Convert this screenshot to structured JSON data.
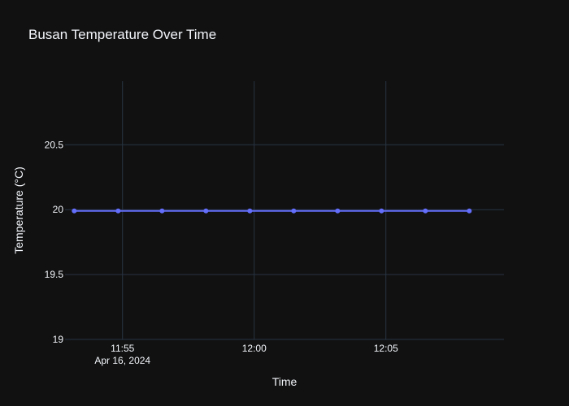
{
  "chart_data": {
    "type": "line",
    "title": "Busan Temperature Over Time",
    "xlabel": "Time",
    "ylabel": "Temperature (°C)",
    "x_date": "Apr 16, 2024",
    "x": [
      "11:53:10",
      "11:54:50",
      "11:56:30",
      "11:58:10",
      "11:59:50",
      "12:01:30",
      "12:03:10",
      "12:04:50",
      "12:06:30",
      "12:08:10"
    ],
    "series": [
      {
        "values": [
          19.99,
          19.99,
          19.99,
          19.99,
          19.99,
          19.99,
          19.99,
          19.99,
          19.99,
          19.99
        ]
      }
    ],
    "x_ticks": [
      {
        "time": "11:55:00",
        "label": "11:55",
        "sublabel": "Apr 16, 2024"
      },
      {
        "time": "12:00:00",
        "label": "12:00",
        "sublabel": ""
      },
      {
        "time": "12:05:00",
        "label": "12:05",
        "sublabel": ""
      }
    ],
    "y_ticks": [
      19,
      19.5,
      20,
      20.5
    ],
    "y_tick_labels": [
      "19",
      "19.5",
      "20",
      "20.5"
    ],
    "xlim": [
      "11:52:49",
      "12:09:29"
    ],
    "ylim": [
      19,
      20.99
    ],
    "grid": true,
    "colors": {
      "background": "#111111",
      "line": "#636efa",
      "grid": "#283442",
      "text": "#f2f5fa"
    }
  }
}
